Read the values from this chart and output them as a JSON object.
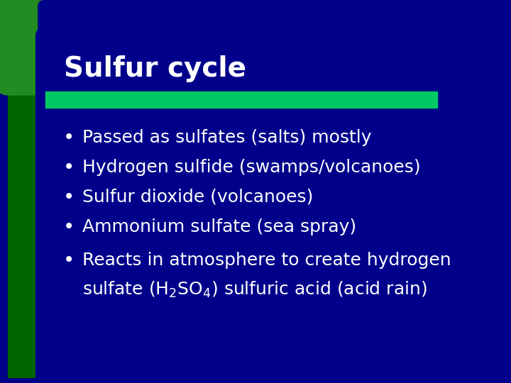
{
  "title": "Sulfur cycle",
  "bg_color": "#00008B",
  "left_bar_color": "#006400",
  "green_bar_color": "#00C864",
  "title_color": "#FFFFFF",
  "bullet_color": "#FFFFFF",
  "bullet_points": [
    "Passed as sulfates (salts) mostly",
    "Hydrogen sulfide (swamps/volcanoes)",
    "Sulfur dioxide (volcanoes)",
    "Ammonium sulfate (sea spray)"
  ],
  "last_bullet_line1": "Reacts in atmosphere to create hydrogen",
  "last_bullet_line2_pre": "sulfate (H",
  "last_bullet_line2_sub1": "2",
  "last_bullet_line2_mid": "SO",
  "last_bullet_line2_sub2": "4",
  "last_bullet_line2_post": ") sulfuric acid (acid rain)",
  "green_tab_color": "#2E8B57",
  "top_left_corner_color": "#228B22"
}
